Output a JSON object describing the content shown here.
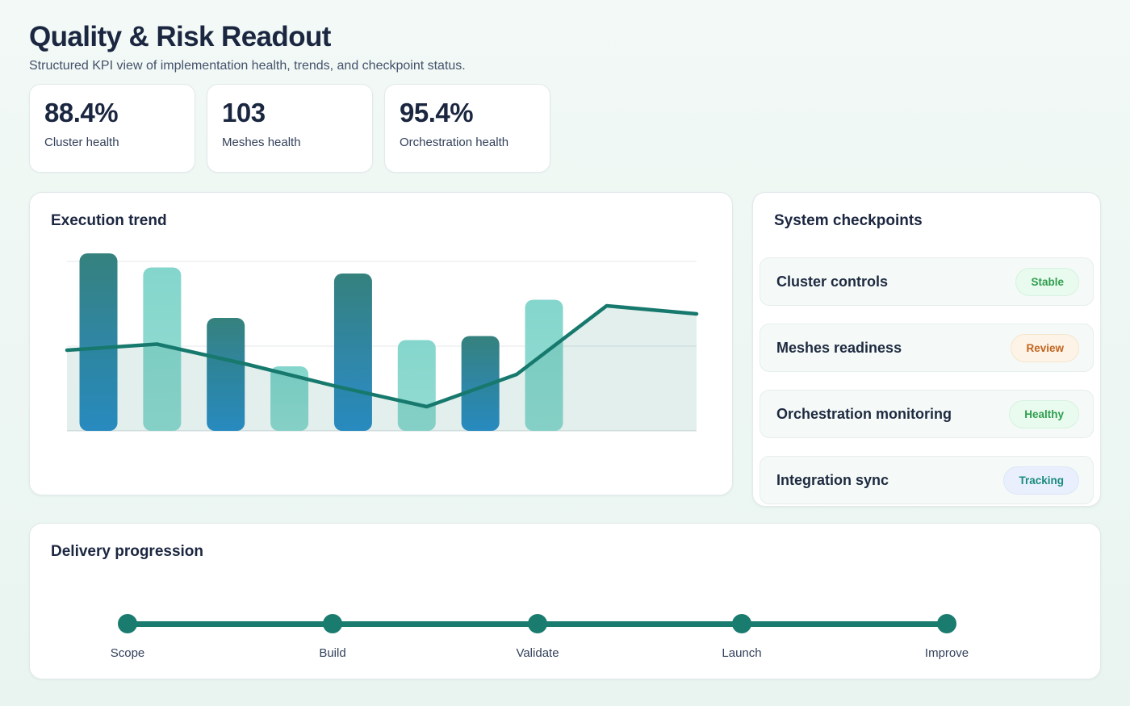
{
  "page": {
    "title": "Quality & Risk Readout",
    "subtitle": "Structured KPI view of implementation health, trends, and checkpoint status."
  },
  "kpis": [
    {
      "value": "88.4%",
      "label": "Cluster health"
    },
    {
      "value": "103",
      "label": "Meshes health"
    },
    {
      "value": "95.4%",
      "label": "Orchestration health"
    }
  ],
  "chart_data": {
    "type": "bar",
    "title": "Execution trend",
    "x": [
      1,
      2,
      3,
      4,
      5,
      6,
      7,
      8
    ],
    "series": [
      {
        "name": "execution-bars",
        "type": "bar",
        "values": [
          88,
          81,
          56,
          32,
          78,
          45,
          47,
          65
        ]
      },
      {
        "name": "trend",
        "type": "line",
        "values": [
          40,
          43,
          33,
          22,
          12,
          28,
          62,
          58
        ]
      }
    ],
    "xlabel": "",
    "ylabel": "",
    "ylim": [
      0,
      118
    ],
    "gridline_values": [
      42,
      84
    ],
    "grid": "horizontal",
    "legend": "none",
    "axis_tick_labels": "none",
    "bar_styles": [
      "gradient-teal-blue",
      "light-teal"
    ]
  },
  "checkpoints": {
    "title": "System checkpoints",
    "items": [
      {
        "label": "Cluster controls",
        "status": "Stable",
        "tone": "green"
      },
      {
        "label": "Meshes readiness",
        "status": "Review",
        "tone": "orange"
      },
      {
        "label": "Orchestration monitoring",
        "status": "Healthy",
        "tone": "green"
      },
      {
        "label": "Integration sync",
        "status": "Tracking",
        "tone": "blue"
      }
    ]
  },
  "delivery": {
    "title": "Delivery progression",
    "milestones": [
      "Scope",
      "Build",
      "Validate",
      "Launch",
      "Improve"
    ]
  },
  "colors": {
    "accent_teal": "#17796d",
    "timeline_teal": "#1a7b6f",
    "bar_gradient_top": "#35817d",
    "bar_gradient_bottom": "#2b8ccb",
    "bar_light_top": "#84d6cc",
    "bar_light_bottom": "#95dcd3",
    "area_fill": "rgba(23,121,109,0.12)",
    "gridline": "#e9ecee",
    "baseline": "#e2e6e8",
    "status_green": "#2f9e4f",
    "status_orange": "#c2641f",
    "status_blue_teal": "#198a7e"
  }
}
